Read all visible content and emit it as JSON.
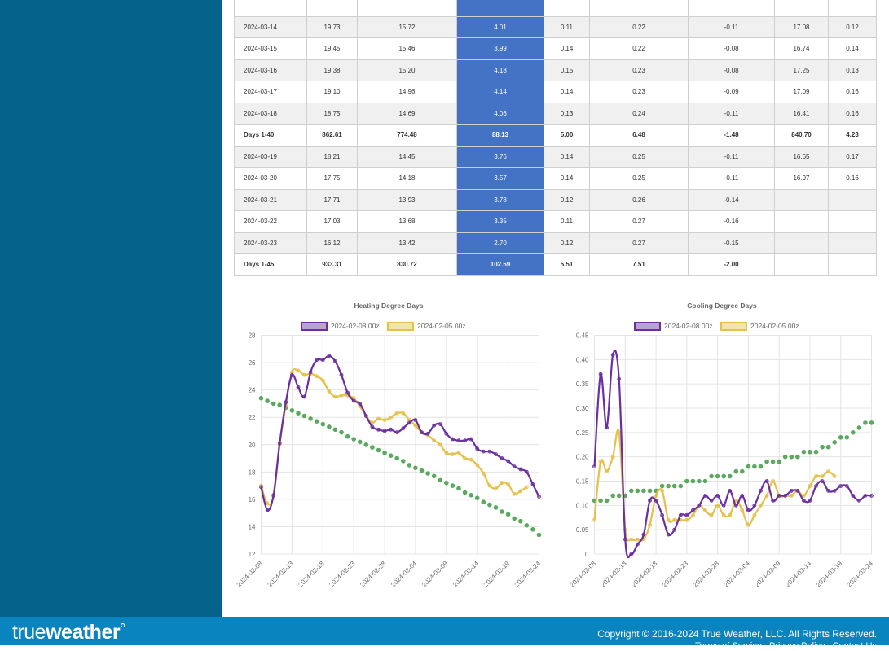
{
  "table": {
    "rows": [
      {
        "type": "date",
        "cells": [
          "2024-03-14",
          "19.73",
          "15.72",
          "4.01",
          "0.11",
          "0.22",
          "-0.11",
          "17.08",
          "0.12"
        ]
      },
      {
        "type": "date",
        "cells": [
          "2024-03-15",
          "19.45",
          "15.46",
          "3.99",
          "0.14",
          "0.22",
          "-0.08",
          "16.74",
          "0.14"
        ]
      },
      {
        "type": "date",
        "cells": [
          "2024-03-16",
          "19.38",
          "15.20",
          "4.18",
          "0.15",
          "0.23",
          "-0.08",
          "17.25",
          "0.13"
        ]
      },
      {
        "type": "date",
        "cells": [
          "2024-03-17",
          "19.10",
          "14.96",
          "4.14",
          "0.14",
          "0.23",
          "-0.09",
          "17.09",
          "0.16"
        ]
      },
      {
        "type": "date",
        "cells": [
          "2024-03-18",
          "18.75",
          "14.69",
          "4.06",
          "0.13",
          "0.24",
          "-0.11",
          "16.41",
          "0.16"
        ]
      },
      {
        "type": "total",
        "cells": [
          "Days 1-40",
          "862.61",
          "774.48",
          "88.13",
          "5.00",
          "6.48",
          "-1.48",
          "840.70",
          "4.23"
        ]
      },
      {
        "type": "date",
        "cells": [
          "2024-03-19",
          "18.21",
          "14.45",
          "3.76",
          "0.14",
          "0.25",
          "-0.11",
          "16.65",
          "0.17"
        ]
      },
      {
        "type": "date",
        "cells": [
          "2024-03-20",
          "17.75",
          "14.18",
          "3.57",
          "0.14",
          "0.25",
          "-0.11",
          "16.97",
          "0.16"
        ]
      },
      {
        "type": "date",
        "cells": [
          "2024-03-21",
          "17.71",
          "13.93",
          "3.78",
          "0.12",
          "0.26",
          "-0.14",
          "",
          ""
        ]
      },
      {
        "type": "date",
        "cells": [
          "2024-03-22",
          "17.03",
          "13.68",
          "3.35",
          "0.11",
          "0.27",
          "-0.16",
          "",
          ""
        ]
      },
      {
        "type": "date",
        "cells": [
          "2024-03-23",
          "16.12",
          "13.42",
          "2.70",
          "0.12",
          "0.27",
          "-0.15",
          "",
          ""
        ]
      },
      {
        "type": "total",
        "cells": [
          "Days 1-45",
          "933.31",
          "830.72",
          "102.59",
          "5.51",
          "7.51",
          "-2.00",
          "",
          ""
        ]
      }
    ]
  },
  "chart_data": [
    {
      "type": "line",
      "title": "Heating Degree Days",
      "ylim": [
        12,
        28
      ],
      "yticks": [
        12,
        14,
        16,
        18,
        20,
        22,
        24,
        26,
        28
      ],
      "xlabels": [
        "2024-02-08",
        "2024-02-13",
        "2024-02-18",
        "2024-02-23",
        "2024-02-28",
        "2024-03-04",
        "2024-03-09",
        "2024-03-14",
        "2024-03-19",
        "2024-03-24"
      ],
      "xcount": 46,
      "grid": true,
      "legend_position": "top",
      "series": [
        {
          "name": "2024-02-08 00z",
          "color": "#6a2fa0",
          "values": [
            16.9,
            15.2,
            16.3,
            20.1,
            23.1,
            25.1,
            24.2,
            23.5,
            25.3,
            26.2,
            26.2,
            26.5,
            26.1,
            25.1,
            23.8,
            23.2,
            23.0,
            22.1,
            21.3,
            21.1,
            21.0,
            21.1,
            20.9,
            21.2,
            21.6,
            21.8,
            20.9,
            20.8,
            21.4,
            21.5,
            20.8,
            20.4,
            20.3,
            20.3,
            20.4,
            19.7,
            19.5,
            19.5,
            19.3,
            19.0,
            18.8,
            18.4,
            18.2,
            18.0,
            17.1,
            16.2
          ]
        },
        {
          "name": "2024-02-05 00z",
          "color": "#e5c04a",
          "values": [
            17.0,
            15.7,
            16.2,
            20.0,
            22.9,
            25.3,
            25.4,
            25.1,
            25.2,
            25.0,
            24.7,
            23.9,
            23.5,
            23.6,
            23.6,
            23.4,
            22.8,
            22.1,
            21.6,
            21.9,
            21.8,
            22.0,
            22.3,
            22.3,
            21.8,
            21.4,
            20.9,
            20.7,
            20.3,
            20.0,
            19.4,
            19.3,
            19.4,
            19.0,
            18.9,
            18.5,
            17.9,
            17.0,
            16.8,
            17.2,
            17.1,
            16.4,
            16.6,
            16.9
          ]
        },
        {
          "name": "",
          "color": "#5ba85f",
          "dotsOnly": true,
          "values": [
            23.4,
            23.2,
            23.0,
            22.9,
            22.7,
            22.5,
            22.3,
            22.1,
            21.9,
            21.7,
            21.5,
            21.3,
            21.1,
            20.9,
            20.6,
            20.4,
            20.2,
            20.0,
            19.8,
            19.6,
            19.4,
            19.2,
            19.0,
            18.8,
            18.5,
            18.3,
            18.1,
            17.9,
            17.7,
            17.4,
            17.2,
            17.0,
            16.8,
            16.5,
            16.3,
            16.1,
            15.8,
            15.6,
            15.4,
            15.1,
            14.9,
            14.6,
            14.4,
            14.1,
            13.8,
            13.4
          ]
        }
      ]
    },
    {
      "type": "line",
      "title": "Cooling Degree Days",
      "ylim": [
        0,
        0.45
      ],
      "yticks": [
        0,
        0.05,
        0.1,
        0.15,
        0.2,
        0.25,
        0.3,
        0.35,
        0.4,
        0.45
      ],
      "ytick_labels": [
        "0",
        "0.05",
        "0.10",
        "0.15",
        "0.20",
        "0.25",
        "0.30",
        "0.35",
        "0.40",
        "0.45"
      ],
      "xlabels": [
        "2024-02-08",
        "2024-02-13",
        "2024-02-18",
        "2024-02-23",
        "2024-02-28",
        "2024-03-04",
        "2024-03-09",
        "2024-03-14",
        "2024-03-19",
        "2024-03-24"
      ],
      "xcount": 46,
      "grid": true,
      "legend_position": "top",
      "series": [
        {
          "name": "2024-02-08 00z",
          "color": "#6a2fa0",
          "values": [
            0.18,
            0.37,
            0.26,
            0.41,
            0.36,
            0.03,
            0.0,
            0.02,
            0.04,
            0.11,
            0.11,
            0.08,
            0.04,
            0.05,
            0.08,
            0.08,
            0.09,
            0.1,
            0.12,
            0.11,
            0.12,
            0.1,
            0.13,
            0.1,
            0.12,
            0.09,
            0.1,
            0.13,
            0.15,
            0.11,
            0.12,
            0.12,
            0.13,
            0.13,
            0.11,
            0.11,
            0.14,
            0.15,
            0.13,
            0.13,
            0.14,
            0.14,
            0.12,
            0.11,
            0.12,
            0.12
          ]
        },
        {
          "name": "2024-02-05 00z",
          "color": "#e5c04a",
          "values": [
            0.07,
            0.19,
            0.17,
            0.2,
            0.25,
            0.05,
            0.03,
            0.03,
            0.03,
            0.06,
            0.12,
            0.13,
            0.07,
            0.07,
            0.07,
            0.07,
            0.08,
            0.1,
            0.09,
            0.08,
            0.1,
            0.08,
            0.08,
            0.11,
            0.09,
            0.06,
            0.08,
            0.1,
            0.12,
            0.15,
            0.12,
            0.12,
            0.12,
            0.13,
            0.12,
            0.14,
            0.16,
            0.16,
            0.17,
            0.16
          ]
        },
        {
          "name": "",
          "color": "#5ba85f",
          "dotsOnly": true,
          "values": [
            0.11,
            0.11,
            0.11,
            0.12,
            0.12,
            0.12,
            0.13,
            0.13,
            0.13,
            0.13,
            0.13,
            0.14,
            0.14,
            0.14,
            0.14,
            0.15,
            0.15,
            0.15,
            0.15,
            0.16,
            0.16,
            0.16,
            0.16,
            0.17,
            0.17,
            0.18,
            0.18,
            0.18,
            0.19,
            0.19,
            0.19,
            0.2,
            0.2,
            0.2,
            0.21,
            0.21,
            0.21,
            0.22,
            0.22,
            0.23,
            0.24,
            0.24,
            0.25,
            0.26,
            0.27,
            0.27
          ]
        }
      ]
    }
  ],
  "footer": {
    "logo_light": "true",
    "logo_bold": "weather",
    "copyright": "Copyright © 2016-2024 True Weather, LLC. All Rights Reserved.",
    "links": [
      "Terms of Service",
      "Privacy Policy",
      "Contact Us"
    ]
  },
  "colors": {
    "sidebar": "#05628a",
    "footer": "#0a84be",
    "highlight_column": "#4472c4"
  }
}
